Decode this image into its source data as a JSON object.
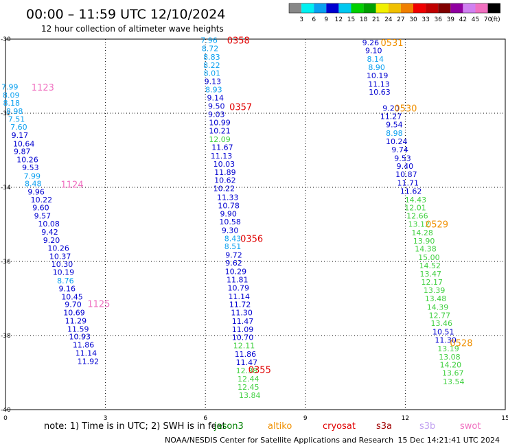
{
  "header": {
    "title": "00:00 – 11:59 UTC 12/10/2024",
    "subtitle": "12 hour collection of altimeter wave heights"
  },
  "colorbar": {
    "labels": [
      "3",
      "6",
      "9",
      "12",
      "15",
      "18",
      "21",
      "24",
      "27",
      "30",
      "33",
      "36",
      "39",
      "42",
      "45",
      "70"
    ],
    "unit": "(ft)",
    "colors": [
      "#888888",
      "#00f0f0",
      "#0aa0f0",
      "#0000d0",
      "#00c8f0",
      "#00d000",
      "#00a000",
      "#f0f000",
      "#f0c000",
      "#f08000",
      "#f00000",
      "#c00000",
      "#800000",
      "#9000a0",
      "#d080f0",
      "#f070c0",
      "#000000"
    ]
  },
  "footer": {
    "note": "note:  1) Time is in UTC; 2) SWH is in feet",
    "credit": "NOAA/NESDIS Center for Satellite Applications and Research",
    "timestamp": "15 Dec 14:21:41 UTC 2024"
  },
  "satellites": [
    {
      "name": "jason3",
      "color": "#008000"
    },
    {
      "name": "altiko",
      "color": "#f09000"
    },
    {
      "name": "cryosat",
      "color": "#e00000"
    },
    {
      "name": "s3a",
      "color": "#a00000"
    },
    {
      "name": "s3b",
      "color": "#c0a0f0"
    },
    {
      "name": "swot",
      "color": "#f070c0"
    }
  ],
  "chart_data": {
    "type": "scatter",
    "title": "00:00 – 11:59 UTC 12/10/2024",
    "subtitle": "12 hour collection of altimeter wave heights",
    "xlabel": "",
    "ylabel": "",
    "xlim": [
      0,
      15
    ],
    "ylim": [
      -40,
      -30
    ],
    "x_ticks": [
      0,
      3,
      6,
      9,
      12,
      15
    ],
    "y_ticks": [
      -30,
      -32,
      -34,
      -36,
      -38,
      -40
    ],
    "x_tick_labels": [
      "0",
      "3",
      "6",
      "9",
      "12",
      "15"
    ],
    "y_tick_labels": [
      "-30",
      "-32",
      "-34",
      "-36",
      "-38",
      "-40"
    ],
    "grid": true,
    "color_key": {
      "N": "#0000d0",
      "C": "#0aa0f0",
      "G": "#40d040",
      "D": "#0000d0",
      "P": "#f070c0",
      "R": "#e00000",
      "O": "#f09000"
    },
    "series": [
      {
        "points": [
          [
            0.13,
            -31.29,
            "7.99",
            "C"
          ],
          [
            0.17,
            -31.51,
            "8.09",
            "C"
          ],
          [
            0.18,
            -31.72,
            "8.18",
            "C"
          ],
          [
            0.27,
            -31.94,
            "8.98",
            "C"
          ],
          [
            0.33,
            -32.16,
            "7.51",
            "C"
          ],
          [
            0.4,
            -32.37,
            "7.60",
            "C"
          ],
          [
            0.43,
            -32.59,
            "9.17",
            "N"
          ],
          [
            0.55,
            -32.82,
            "10.64",
            "N"
          ],
          [
            0.5,
            -33.03,
            "9.87",
            "N"
          ],
          [
            0.66,
            -33.25,
            "10.26",
            "N"
          ],
          [
            0.75,
            -33.46,
            "9.53",
            "N"
          ],
          [
            0.8,
            -33.69,
            "7.99",
            "C"
          ],
          [
            0.83,
            -33.9,
            "8.48",
            "C"
          ],
          [
            0.92,
            -34.12,
            "9.96",
            "N"
          ],
          [
            1.08,
            -34.33,
            "10.22",
            "N"
          ],
          [
            1.06,
            -34.55,
            "9.60",
            "N"
          ],
          [
            1.11,
            -34.77,
            "9.57",
            "N"
          ],
          [
            1.3,
            -34.98,
            "10.08",
            "N"
          ],
          [
            1.33,
            -35.2,
            "9.42",
            "N"
          ],
          [
            1.38,
            -35.43,
            "9.20",
            "N"
          ],
          [
            1.59,
            -35.64,
            "10.26",
            "N"
          ],
          [
            1.64,
            -35.86,
            "10.37",
            "N"
          ],
          [
            1.7,
            -36.07,
            "10.30",
            "N"
          ],
          [
            1.74,
            -36.29,
            "10.19",
            "N"
          ],
          [
            1.8,
            -36.52,
            "8.76",
            "C"
          ],
          [
            1.85,
            -36.73,
            "9.16",
            "N"
          ],
          [
            2.0,
            -36.95,
            "10.45",
            "N"
          ],
          [
            2.03,
            -37.16,
            "9.70",
            "N"
          ],
          [
            2.06,
            -37.38,
            "10.69",
            "N"
          ],
          [
            2.11,
            -37.6,
            "11.29",
            "N"
          ],
          [
            2.18,
            -37.82,
            "11.59",
            "N"
          ],
          [
            2.23,
            -38.03,
            "10.93",
            "N"
          ],
          [
            2.34,
            -38.25,
            "11.86",
            "N"
          ],
          [
            2.42,
            -38.47,
            "11.14",
            "N"
          ],
          [
            2.48,
            -38.69,
            "11.92",
            "N"
          ]
        ],
        "markers": [
          [
            1.12,
            -31.3,
            "1123",
            "P"
          ],
          [
            2.0,
            -33.92,
            "1124",
            "P"
          ],
          [
            2.8,
            -37.14,
            "1125",
            "P"
          ]
        ]
      },
      {
        "points": [
          [
            6.11,
            -30.03,
            "7.96",
            "C"
          ],
          [
            6.14,
            -30.25,
            "8.72",
            "C"
          ],
          [
            6.19,
            -30.48,
            "8.83",
            "C"
          ],
          [
            6.19,
            -30.7,
            "8.22",
            "C"
          ],
          [
            6.2,
            -30.92,
            "8.01",
            "C"
          ],
          [
            6.22,
            -31.14,
            "9.13",
            "N"
          ],
          [
            6.25,
            -31.36,
            "8.93",
            "C"
          ],
          [
            6.3,
            -31.58,
            "9.14",
            "N"
          ],
          [
            6.33,
            -31.81,
            "9.50",
            "N"
          ],
          [
            6.33,
            -32.03,
            "9.03",
            "N"
          ],
          [
            6.43,
            -32.25,
            "10.99",
            "N"
          ],
          [
            6.43,
            -32.47,
            "10.21",
            "N"
          ],
          [
            6.43,
            -32.7,
            "12.09",
            "G"
          ],
          [
            6.51,
            -32.92,
            "11.67",
            "N"
          ],
          [
            6.48,
            -33.15,
            "11.13",
            "N"
          ],
          [
            6.56,
            -33.37,
            "10.03",
            "N"
          ],
          [
            6.59,
            -33.59,
            "11.89",
            "N"
          ],
          [
            6.59,
            -33.81,
            "10.62",
            "N"
          ],
          [
            6.56,
            -34.03,
            "10.22",
            "N"
          ],
          [
            6.67,
            -34.27,
            "11.33",
            "N"
          ],
          [
            6.7,
            -34.49,
            "10.78",
            "N"
          ],
          [
            6.69,
            -34.71,
            "9.90",
            "N"
          ],
          [
            6.74,
            -34.93,
            "10.58",
            "N"
          ],
          [
            6.74,
            -35.16,
            "9.30",
            "N"
          ],
          [
            6.82,
            -35.38,
            "8.43",
            "C"
          ],
          [
            6.82,
            -35.59,
            "8.51",
            "C"
          ],
          [
            6.85,
            -35.82,
            "9.72",
            "N"
          ],
          [
            6.85,
            -36.04,
            "9.62",
            "N"
          ],
          [
            6.91,
            -36.27,
            "10.29",
            "N"
          ],
          [
            6.96,
            -36.49,
            "11.81",
            "N"
          ],
          [
            6.99,
            -36.71,
            "10.79",
            "N"
          ],
          [
            7.01,
            -36.94,
            "11.14",
            "N"
          ],
          [
            7.04,
            -37.16,
            "11.72",
            "N"
          ],
          [
            7.09,
            -37.38,
            "11.30",
            "N"
          ],
          [
            7.12,
            -37.61,
            "11.47",
            "N"
          ],
          [
            7.12,
            -37.83,
            "11.09",
            "N"
          ],
          [
            7.12,
            -38.05,
            "10.70",
            "N"
          ],
          [
            7.16,
            -38.27,
            "12.11",
            "G"
          ],
          [
            7.2,
            -38.5,
            "11.86",
            "N"
          ],
          [
            7.24,
            -38.72,
            "11.47",
            "N"
          ],
          [
            7.24,
            -38.94,
            "12.38",
            "G"
          ],
          [
            7.29,
            -39.17,
            "12.44",
            "G"
          ],
          [
            7.29,
            -39.39,
            "12.45",
            "G"
          ],
          [
            7.33,
            -39.61,
            "13.84",
            "G"
          ]
        ],
        "markers": [
          [
            6.99,
            -30.03,
            "0358",
            "R"
          ],
          [
            7.06,
            -31.82,
            "0357",
            "R"
          ],
          [
            7.39,
            -35.38,
            "0356",
            "R"
          ],
          [
            7.63,
            -38.92,
            "0355",
            "R"
          ]
        ]
      },
      {
        "points": [
          [
            10.96,
            -30.09,
            "9.26",
            "D"
          ],
          [
            11.05,
            -30.31,
            "9.10",
            "D"
          ],
          [
            11.1,
            -30.54,
            "8.14",
            "C"
          ],
          [
            11.14,
            -30.76,
            "8.90",
            "C"
          ],
          [
            11.16,
            -30.98,
            "10.19",
            "N"
          ],
          [
            11.21,
            -31.21,
            "11.13",
            "N"
          ],
          [
            11.23,
            -31.43,
            "10.63",
            "N"
          ],
          [
            11.57,
            -31.86,
            "9.20",
            "N"
          ],
          [
            11.57,
            -32.08,
            "11.27",
            "N"
          ],
          [
            11.67,
            -32.31,
            "9.54",
            "N"
          ],
          [
            11.67,
            -32.54,
            "8.98",
            "C"
          ],
          [
            11.74,
            -32.76,
            "10.24",
            "N"
          ],
          [
            11.84,
            -32.98,
            "9.74",
            "N"
          ],
          [
            11.92,
            -33.21,
            "9.53",
            "N"
          ],
          [
            11.99,
            -33.43,
            "9.40",
            "N"
          ],
          [
            12.03,
            -33.65,
            "10.87",
            "N"
          ],
          [
            12.08,
            -33.88,
            "11.71",
            "N"
          ],
          [
            12.17,
            -34.1,
            "11.62",
            "N"
          ],
          [
            12.31,
            -34.33,
            "14.43",
            "G"
          ],
          [
            12.3,
            -34.55,
            "12.01",
            "G"
          ],
          [
            12.36,
            -34.77,
            "12.66",
            "G"
          ],
          [
            12.41,
            -34.99,
            "13.12",
            "G"
          ],
          [
            12.51,
            -35.22,
            "14.28",
            "G"
          ],
          [
            12.56,
            -35.44,
            "13.90",
            "G"
          ],
          [
            12.61,
            -35.66,
            "14.38",
            "G"
          ],
          [
            12.71,
            -35.89,
            "15.00",
            "G"
          ],
          [
            12.74,
            -36.11,
            "14.52",
            "G"
          ],
          [
            12.76,
            -36.33,
            "13.47",
            "G"
          ],
          [
            12.8,
            -36.56,
            "12.17",
            "G"
          ],
          [
            12.87,
            -36.78,
            "13.39",
            "G"
          ],
          [
            12.91,
            -37.0,
            "13.48",
            "G"
          ],
          [
            12.97,
            -37.23,
            "14.39",
            "G"
          ],
          [
            13.03,
            -37.45,
            "12.77",
            "G"
          ],
          [
            13.09,
            -37.67,
            "13.46",
            "G"
          ],
          [
            13.14,
            -37.9,
            "10.51",
            "N"
          ],
          [
            13.21,
            -38.12,
            "11.30",
            "N"
          ],
          [
            13.29,
            -38.35,
            "13.19",
            "G"
          ],
          [
            13.33,
            -38.57,
            "13.08",
            "G"
          ],
          [
            13.36,
            -38.79,
            "14.20",
            "G"
          ],
          [
            13.43,
            -39.01,
            "13.67",
            "G"
          ],
          [
            13.45,
            -39.24,
            "13.54",
            "G"
          ]
        ],
        "markers": [
          [
            11.6,
            -30.09,
            "0531",
            "O"
          ],
          [
            12.01,
            -31.86,
            "0530",
            "O"
          ],
          [
            12.95,
            -34.99,
            "0529",
            "O"
          ],
          [
            13.68,
            -38.19,
            "0528",
            "O"
          ]
        ]
      }
    ]
  }
}
